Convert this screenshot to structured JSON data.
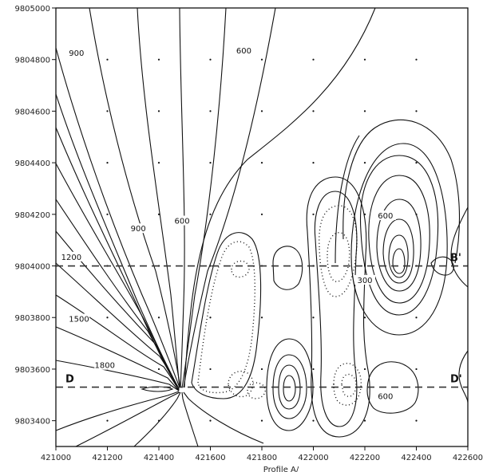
{
  "chart_data": {
    "type": "contour",
    "xlabel": "Profile A/",
    "ylabel": "",
    "xlim": [
      421000,
      422600
    ],
    "ylim": [
      9803300,
      9805000
    ],
    "x_ticks": [
      421000,
      421200,
      421400,
      421600,
      421800,
      422000,
      422200,
      422400,
      422600
    ],
    "y_ticks": [
      9803400,
      9803600,
      9803800,
      9804000,
      9804200,
      9804400,
      9804600,
      9804800,
      9805000
    ],
    "x_tick_labels": [
      "421000",
      "421200",
      "421400",
      "421600",
      "421800",
      "422000",
      "422200",
      "422400",
      "422600"
    ],
    "y_tick_labels": [
      "9803400",
      "9803600",
      "9803800",
      "9804000",
      "9804200",
      "9804400",
      "9804600",
      "9804800",
      "9805000"
    ],
    "contour_labels": [
      {
        "text": "900",
        "x": 421080,
        "y": 9804820
      },
      {
        "text": "600",
        "x": 421730,
        "y": 9804830
      },
      {
        "text": "900",
        "x": 421320,
        "y": 9804140
      },
      {
        "text": "600",
        "x": 421490,
        "y": 9804170
      },
      {
        "text": "1200",
        "x": 421060,
        "y": 9804030
      },
      {
        "text": "1500",
        "x": 421090,
        "y": 9803790
      },
      {
        "text": "1800",
        "x": 421190,
        "y": 9803610
      },
      {
        "text": "600",
        "x": 422280,
        "y": 9804190
      },
      {
        "text": "300",
        "x": 422200,
        "y": 9803940
      },
      {
        "text": "600",
        "x": 422280,
        "y": 9803490
      }
    ],
    "profiles": [
      {
        "start_label": "B",
        "end_label": "B'",
        "x": [
          421000,
          422600
        ],
        "y": [
          9804000,
          9804000
        ]
      },
      {
        "start_label": "D",
        "end_label": "D'",
        "x": [
          421000,
          422600
        ],
        "y": [
          9803530,
          9803530
        ]
      }
    ],
    "grid_markers": {
      "x": [
        421200,
        421400,
        421600,
        421800,
        422000,
        422200,
        422400
      ],
      "y": [
        9803400,
        9803600,
        9803800,
        9804000,
        9804200,
        9804400,
        9804600,
        9804800
      ]
    }
  }
}
